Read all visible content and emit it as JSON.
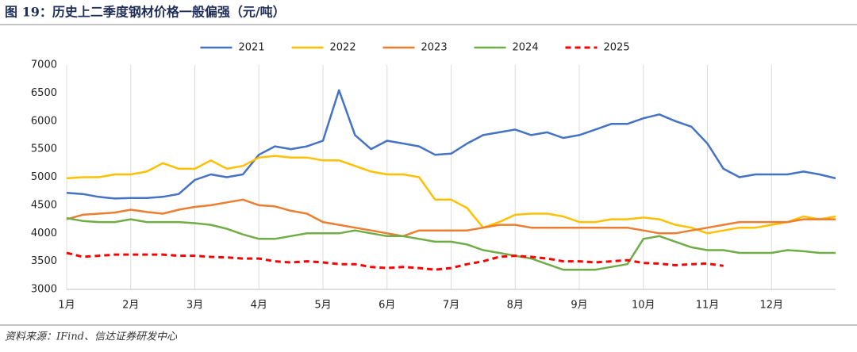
{
  "chart_data": {
    "type": "line",
    "title": "图 19：历史上二季度钢材价格一般偏强（元/吨）",
    "source": "资料来源：IFind、信达证券研发中心",
    "categories": [
      "1月",
      null,
      null,
      null,
      "2月",
      null,
      null,
      null,
      "3月",
      null,
      null,
      null,
      "4月",
      null,
      null,
      null,
      "5月",
      null,
      null,
      null,
      "6月",
      null,
      null,
      null,
      "7月",
      null,
      null,
      null,
      "8月",
      null,
      null,
      null,
      "9月",
      null,
      null,
      null,
      "10月",
      null,
      null,
      null,
      "11月",
      null,
      null,
      null,
      "12月",
      null,
      null,
      null,
      null
    ],
    "ylim": [
      3000,
      7000
    ],
    "yticks": [
      3000,
      3500,
      4000,
      4500,
      5000,
      5500,
      6000,
      6500,
      7000
    ],
    "grid": false,
    "legend": "top",
    "series": [
      {
        "name": "2021",
        "color": "#4472c4",
        "dash": false,
        "values": [
          4720,
          4700,
          4650,
          4620,
          4630,
          4630,
          4650,
          4700,
          4950,
          5050,
          5000,
          5050,
          5400,
          5550,
          5500,
          5550,
          5650,
          6550,
          5750,
          5500,
          5650,
          5600,
          5550,
          5400,
          5420,
          5600,
          5750,
          5800,
          5850,
          5750,
          5800,
          5700,
          5750,
          5850,
          5950,
          5950,
          6050,
          6120,
          6000,
          5900,
          5600,
          5150,
          5000,
          5050,
          5050,
          5050,
          5100,
          5050,
          4980
        ]
      },
      {
        "name": "2022",
        "color": "#ffc000",
        "dash": false,
        "values": [
          4980,
          5000,
          5000,
          5050,
          5050,
          5100,
          5250,
          5150,
          5150,
          5300,
          5150,
          5200,
          5350,
          5380,
          5350,
          5350,
          5300,
          5300,
          5200,
          5100,
          5050,
          5050,
          5000,
          4600,
          4600,
          4450,
          4100,
          4200,
          4330,
          4350,
          4350,
          4300,
          4200,
          4200,
          4250,
          4250,
          4280,
          4250,
          4150,
          4100,
          4000,
          4050,
          4100,
          4100,
          4150,
          4200,
          4300,
          4250,
          4300
        ]
      },
      {
        "name": "2023",
        "color": "#ed7d31",
        "dash": false,
        "values": [
          4250,
          4330,
          4350,
          4370,
          4420,
          4380,
          4350,
          4420,
          4470,
          4500,
          4550,
          4600,
          4500,
          4480,
          4400,
          4350,
          4200,
          4150,
          4100,
          4050,
          4000,
          3950,
          4050,
          4050,
          4050,
          4050,
          4100,
          4150,
          4150,
          4100,
          4100,
          4100,
          4100,
          4100,
          4100,
          4100,
          4050,
          4000,
          4000,
          4050,
          4100,
          4150,
          4200,
          4200,
          4200,
          4200,
          4250,
          4250,
          4250
        ]
      },
      {
        "name": "2024",
        "color": "#70ad47",
        "dash": false,
        "values": [
          4270,
          4220,
          4200,
          4200,
          4250,
          4200,
          4200,
          4200,
          4180,
          4150,
          4080,
          3980,
          3900,
          3900,
          3950,
          4000,
          4000,
          4000,
          4050,
          4000,
          3950,
          3950,
          3900,
          3850,
          3850,
          3800,
          3700,
          3650,
          3600,
          3550,
          3450,
          3350,
          3350,
          3350,
          3400,
          3450,
          3900,
          3950,
          3850,
          3750,
          3700,
          3700,
          3650,
          3650,
          3650,
          3700,
          3680,
          3650,
          3650
        ]
      },
      {
        "name": "2025",
        "color": "#ff0000",
        "dash": true,
        "values": [
          3650,
          3580,
          3600,
          3620,
          3620,
          3620,
          3620,
          3600,
          3600,
          3580,
          3570,
          3550,
          3550,
          3500,
          3480,
          3500,
          3480,
          3450,
          3450,
          3400,
          3380,
          3400,
          3380,
          3350,
          3380,
          3450,
          3500,
          3580,
          3600,
          3580,
          3550,
          3500,
          3500,
          3480,
          3500,
          3520,
          3470,
          3460,
          3430,
          3450,
          3460,
          3420,
          null,
          null,
          null,
          null,
          null,
          null,
          null
        ]
      }
    ]
  }
}
